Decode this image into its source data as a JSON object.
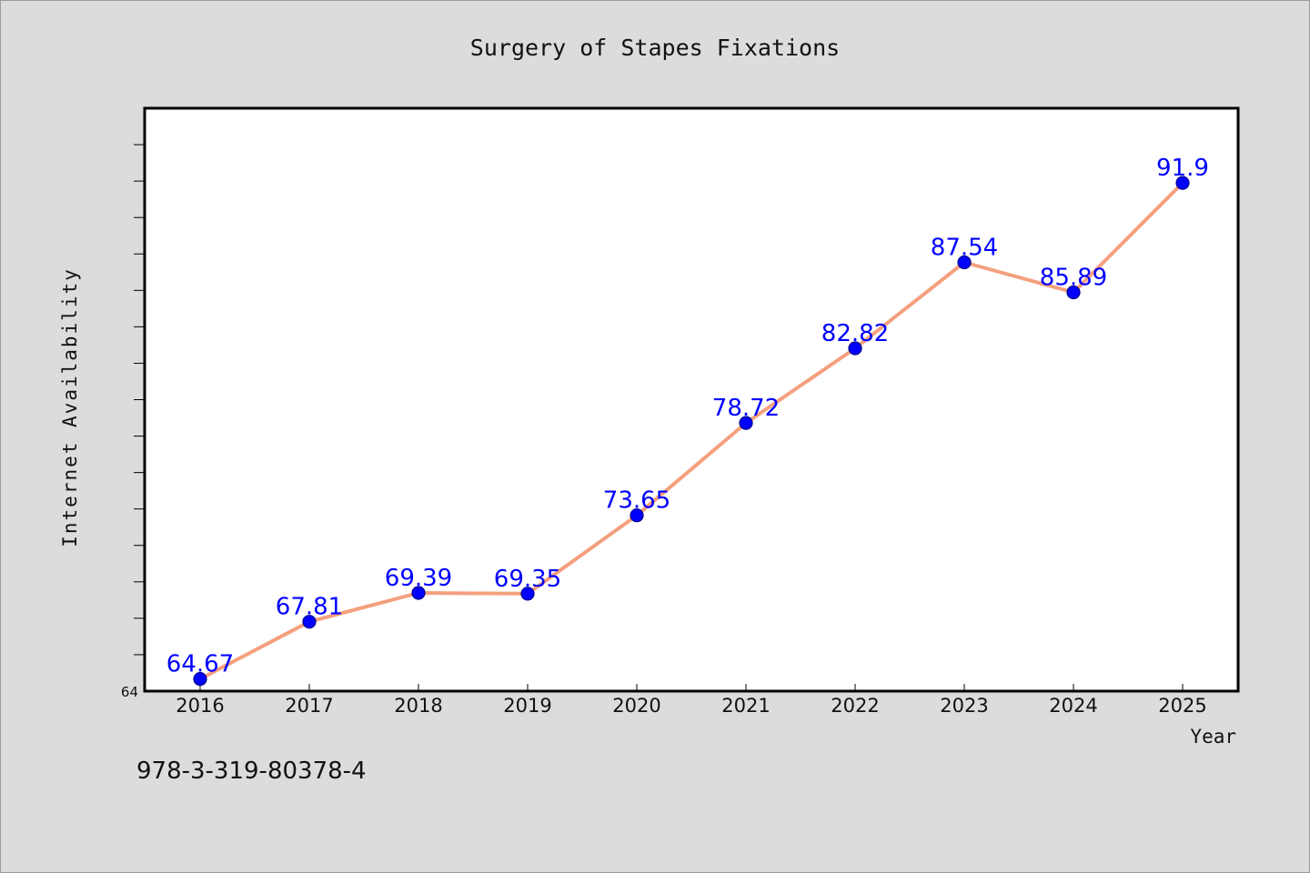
{
  "chart_data": {
    "type": "line",
    "title": "Surgery of Stapes Fixations",
    "xlabel": "Year",
    "ylabel": "Internet Availability",
    "categories": [
      "2016",
      "2017",
      "2018",
      "2019",
      "2020",
      "2021",
      "2022",
      "2023",
      "2024",
      "2025"
    ],
    "series": [
      {
        "values": [
          64.67,
          67.81,
          69.39,
          69.35,
          73.65,
          78.72,
          82.82,
          87.54,
          85.89,
          91.9
        ],
        "data_labels": [
          "64.67",
          "67.81",
          "69.39",
          "69.35",
          "73.65",
          "78.72",
          "82.82",
          "87.54",
          "85.89",
          "91.9"
        ],
        "line_color": "#f4a07e",
        "marker_color": "#0000ff"
      }
    ],
    "ylim": [
      64,
      96
    ],
    "y_tick_labels": [
      "64"
    ],
    "y_minor_tick_step": 2,
    "grid": false,
    "legend": "none"
  },
  "footer": {
    "isbn": "978-3-319-80378-4"
  }
}
